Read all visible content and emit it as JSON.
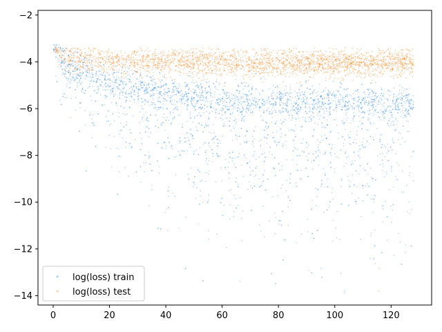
{
  "chart_data": {
    "type": "scatter",
    "title": "",
    "xlabel": "",
    "ylabel": "",
    "xlim": [
      -5.4,
      134.4
    ],
    "ylim": [
      -14.4,
      -1.8
    ],
    "xticks": [
      0,
      20,
      40,
      60,
      80,
      100,
      120
    ],
    "yticks": [
      -14,
      -12,
      -10,
      -8,
      -6,
      -4,
      -2
    ],
    "grid": false,
    "legend_position": "lower-left",
    "series": [
      {
        "name": "log(loss) train",
        "color": "#1a7ff6",
        "description_points": [
          {
            "x": 0.3,
            "y": -2.5
          },
          {
            "x": 1,
            "y": -3.4
          },
          {
            "x": 5,
            "y": -4.0
          },
          {
            "x": 10,
            "y": -4.3
          },
          {
            "x": 20,
            "y": -4.8
          },
          {
            "x": 40,
            "y": -5.3
          },
          {
            "x": 60,
            "y": -5.6
          },
          {
            "x": 80,
            "y": -5.7
          },
          {
            "x": 100,
            "y": -5.75
          },
          {
            "x": 128,
            "y": -5.8
          }
        ],
        "upper_envelope": [
          {
            "x": 0,
            "y": -3.2
          },
          {
            "x": 20,
            "y": -3.8
          },
          {
            "x": 60,
            "y": -4.3
          },
          {
            "x": 128,
            "y": -4.6
          }
        ],
        "lower_envelope": [
          {
            "x": 0,
            "y": -5.0
          },
          {
            "x": 20,
            "y": -8.5
          },
          {
            "x": 40,
            "y": -10.5
          },
          {
            "x": 80,
            "y": -12.5
          },
          {
            "x": 128,
            "y": -13.2
          }
        ]
      },
      {
        "name": "log(loss) test",
        "color": "#ff7f0e",
        "description_points": [
          {
            "x": 0.3,
            "y": -2.6
          },
          {
            "x": 2,
            "y": -3.7
          },
          {
            "x": 10,
            "y": -3.9
          },
          {
            "x": 30,
            "y": -4.0
          },
          {
            "x": 60,
            "y": -4.05
          },
          {
            "x": 100,
            "y": -4.05
          },
          {
            "x": 128,
            "y": -4.05
          }
        ],
        "upper_envelope": [
          {
            "x": 0,
            "y": -3.4
          },
          {
            "x": 128,
            "y": -3.4
          }
        ],
        "lower_envelope": [
          {
            "x": 0,
            "y": -4.5
          },
          {
            "x": 60,
            "y": -4.9
          },
          {
            "x": 128,
            "y": -5.1
          }
        ]
      }
    ]
  }
}
